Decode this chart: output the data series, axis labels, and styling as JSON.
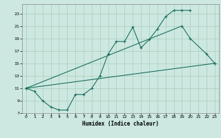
{
  "xlabel": "Humidex (Indice chaleur)",
  "bg_color": "#cce8e0",
  "grid_color": "#aaccbb",
  "line_color": "#1a6e60",
  "xlim": [
    -0.5,
    23.5
  ],
  "ylim": [
    7,
    24.5
  ],
  "xticks": [
    0,
    1,
    2,
    3,
    4,
    5,
    6,
    7,
    8,
    9,
    10,
    11,
    12,
    13,
    14,
    15,
    16,
    17,
    18,
    19,
    20,
    21,
    22,
    23
  ],
  "yticks": [
    7,
    9,
    11,
    13,
    15,
    17,
    19,
    21,
    23
  ],
  "curve1_x": [
    0,
    1,
    2,
    3,
    4,
    5,
    6,
    7,
    8,
    9,
    10,
    11,
    12,
    13,
    14,
    15,
    16,
    17,
    18,
    19,
    20
  ],
  "curve1_y": [
    11,
    10.5,
    9.0,
    8.0,
    7.5,
    7.5,
    10.0,
    10.0,
    11.0,
    13.0,
    16.5,
    18.5,
    18.5,
    20.8,
    17.5,
    18.8,
    20.5,
    22.5,
    23.5,
    23.5,
    23.5
  ],
  "curve2_x": [
    0,
    19,
    20,
    22,
    23
  ],
  "curve2_y": [
    11,
    21.0,
    19.0,
    16.5,
    15.0
  ],
  "curve3_x": [
    0,
    23
  ],
  "curve3_y": [
    11,
    15.0
  ]
}
